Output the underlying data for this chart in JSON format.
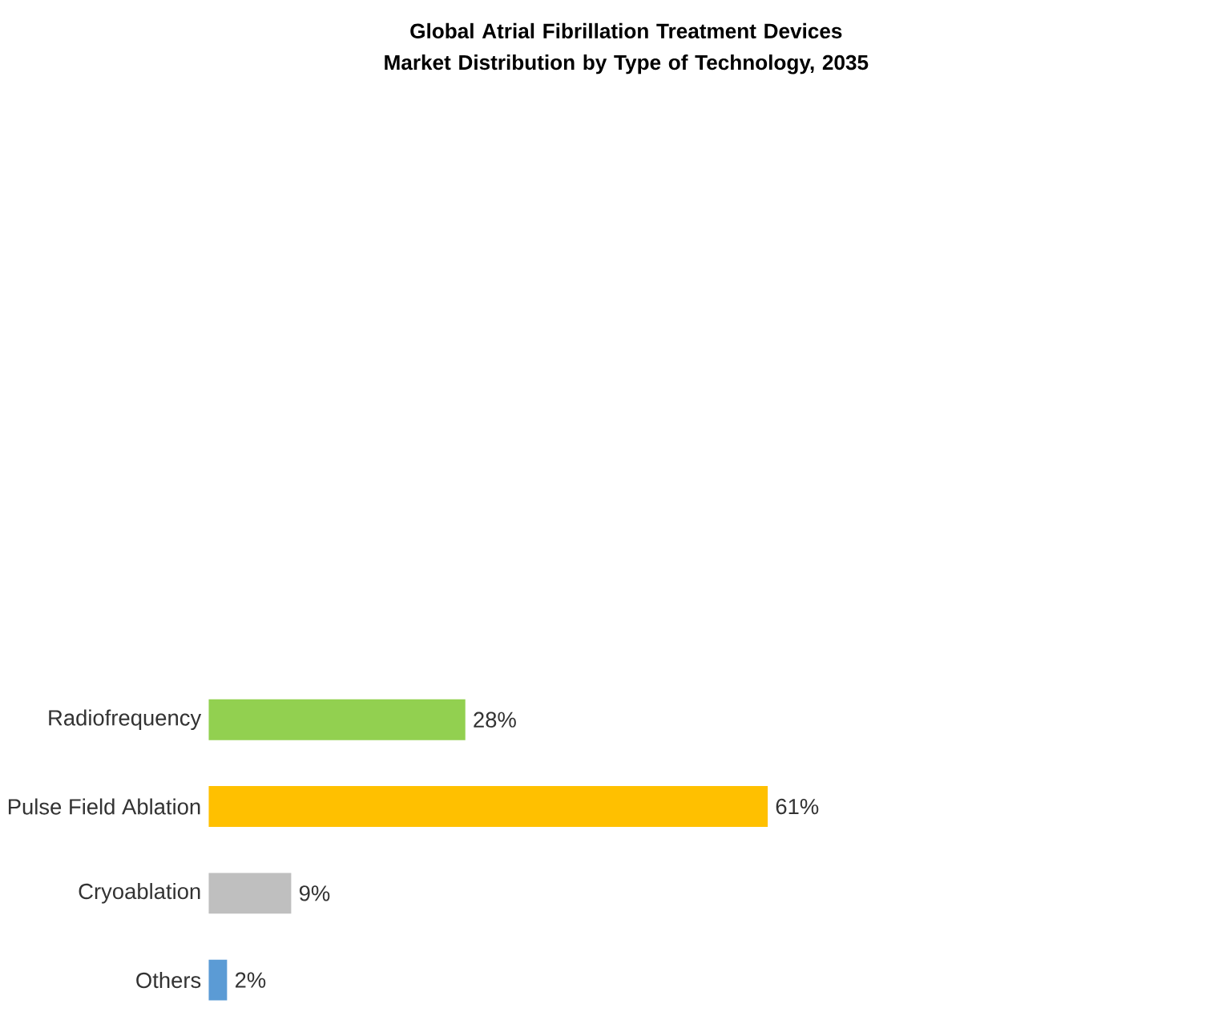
{
  "chart_data": {
    "type": "bar",
    "orientation": "horizontal",
    "title": "Global Atrial Fibrillation Treatment Devices Market Distribution by Type of Technology, 2035",
    "categories": [
      "Radiofrequency",
      "Pulse Field Ablation",
      "Cryoablation",
      "Others"
    ],
    "values": [
      28,
      61,
      9,
      2
    ],
    "colors": [
      "#92d050",
      "#ffc000",
      "#bfbfbf",
      "#5b9bd5"
    ],
    "value_labels": [
      "28%",
      "61%",
      "9%",
      "2%"
    ]
  }
}
